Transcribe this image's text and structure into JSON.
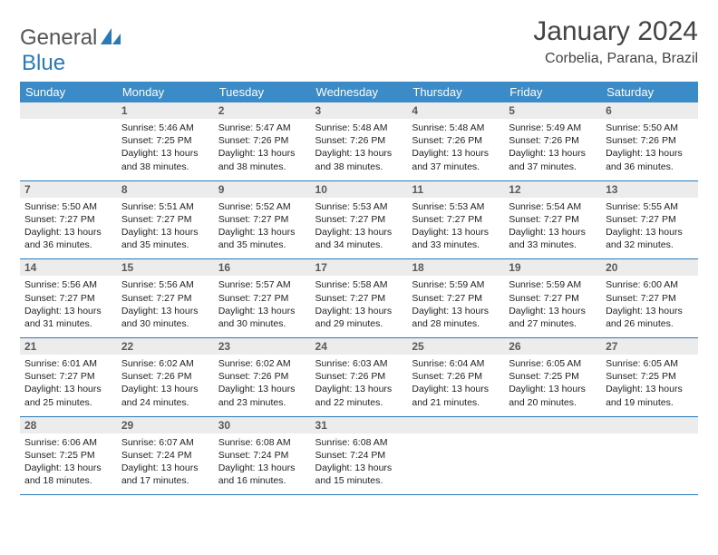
{
  "brand": {
    "word1": "General",
    "word2": "Blue",
    "text_color": "#555555",
    "accent_color": "#2a7ab9"
  },
  "title": "January 2024",
  "location": "Corbelia, Parana, Brazil",
  "header_bg": "#3b8bc9",
  "header_fg": "#ffffff",
  "daynum_bg": "#ececec",
  "row_border": "#2a7ab9",
  "background": "#ffffff",
  "weekdays": [
    "Sunday",
    "Monday",
    "Tuesday",
    "Wednesday",
    "Thursday",
    "Friday",
    "Saturday"
  ],
  "weeks": [
    [
      null,
      {
        "n": "1",
        "sr": "5:46 AM",
        "ss": "7:25 PM",
        "dl": "13 hours and 38 minutes."
      },
      {
        "n": "2",
        "sr": "5:47 AM",
        "ss": "7:26 PM",
        "dl": "13 hours and 38 minutes."
      },
      {
        "n": "3",
        "sr": "5:48 AM",
        "ss": "7:26 PM",
        "dl": "13 hours and 38 minutes."
      },
      {
        "n": "4",
        "sr": "5:48 AM",
        "ss": "7:26 PM",
        "dl": "13 hours and 37 minutes."
      },
      {
        "n": "5",
        "sr": "5:49 AM",
        "ss": "7:26 PM",
        "dl": "13 hours and 37 minutes."
      },
      {
        "n": "6",
        "sr": "5:50 AM",
        "ss": "7:26 PM",
        "dl": "13 hours and 36 minutes."
      }
    ],
    [
      {
        "n": "7",
        "sr": "5:50 AM",
        "ss": "7:27 PM",
        "dl": "13 hours and 36 minutes."
      },
      {
        "n": "8",
        "sr": "5:51 AM",
        "ss": "7:27 PM",
        "dl": "13 hours and 35 minutes."
      },
      {
        "n": "9",
        "sr": "5:52 AM",
        "ss": "7:27 PM",
        "dl": "13 hours and 35 minutes."
      },
      {
        "n": "10",
        "sr": "5:53 AM",
        "ss": "7:27 PM",
        "dl": "13 hours and 34 minutes."
      },
      {
        "n": "11",
        "sr": "5:53 AM",
        "ss": "7:27 PM",
        "dl": "13 hours and 33 minutes."
      },
      {
        "n": "12",
        "sr": "5:54 AM",
        "ss": "7:27 PM",
        "dl": "13 hours and 33 minutes."
      },
      {
        "n": "13",
        "sr": "5:55 AM",
        "ss": "7:27 PM",
        "dl": "13 hours and 32 minutes."
      }
    ],
    [
      {
        "n": "14",
        "sr": "5:56 AM",
        "ss": "7:27 PM",
        "dl": "13 hours and 31 minutes."
      },
      {
        "n": "15",
        "sr": "5:56 AM",
        "ss": "7:27 PM",
        "dl": "13 hours and 30 minutes."
      },
      {
        "n": "16",
        "sr": "5:57 AM",
        "ss": "7:27 PM",
        "dl": "13 hours and 30 minutes."
      },
      {
        "n": "17",
        "sr": "5:58 AM",
        "ss": "7:27 PM",
        "dl": "13 hours and 29 minutes."
      },
      {
        "n": "18",
        "sr": "5:59 AM",
        "ss": "7:27 PM",
        "dl": "13 hours and 28 minutes."
      },
      {
        "n": "19",
        "sr": "5:59 AM",
        "ss": "7:27 PM",
        "dl": "13 hours and 27 minutes."
      },
      {
        "n": "20",
        "sr": "6:00 AM",
        "ss": "7:27 PM",
        "dl": "13 hours and 26 minutes."
      }
    ],
    [
      {
        "n": "21",
        "sr": "6:01 AM",
        "ss": "7:27 PM",
        "dl": "13 hours and 25 minutes."
      },
      {
        "n": "22",
        "sr": "6:02 AM",
        "ss": "7:26 PM",
        "dl": "13 hours and 24 minutes."
      },
      {
        "n": "23",
        "sr": "6:02 AM",
        "ss": "7:26 PM",
        "dl": "13 hours and 23 minutes."
      },
      {
        "n": "24",
        "sr": "6:03 AM",
        "ss": "7:26 PM",
        "dl": "13 hours and 22 minutes."
      },
      {
        "n": "25",
        "sr": "6:04 AM",
        "ss": "7:26 PM",
        "dl": "13 hours and 21 minutes."
      },
      {
        "n": "26",
        "sr": "6:05 AM",
        "ss": "7:25 PM",
        "dl": "13 hours and 20 minutes."
      },
      {
        "n": "27",
        "sr": "6:05 AM",
        "ss": "7:25 PM",
        "dl": "13 hours and 19 minutes."
      }
    ],
    [
      {
        "n": "28",
        "sr": "6:06 AM",
        "ss": "7:25 PM",
        "dl": "13 hours and 18 minutes."
      },
      {
        "n": "29",
        "sr": "6:07 AM",
        "ss": "7:24 PM",
        "dl": "13 hours and 17 minutes."
      },
      {
        "n": "30",
        "sr": "6:08 AM",
        "ss": "7:24 PM",
        "dl": "13 hours and 16 minutes."
      },
      {
        "n": "31",
        "sr": "6:08 AM",
        "ss": "7:24 PM",
        "dl": "13 hours and 15 minutes."
      },
      null,
      null,
      null
    ]
  ],
  "labels": {
    "sunrise": "Sunrise:",
    "sunset": "Sunset:",
    "daylight": "Daylight:"
  }
}
